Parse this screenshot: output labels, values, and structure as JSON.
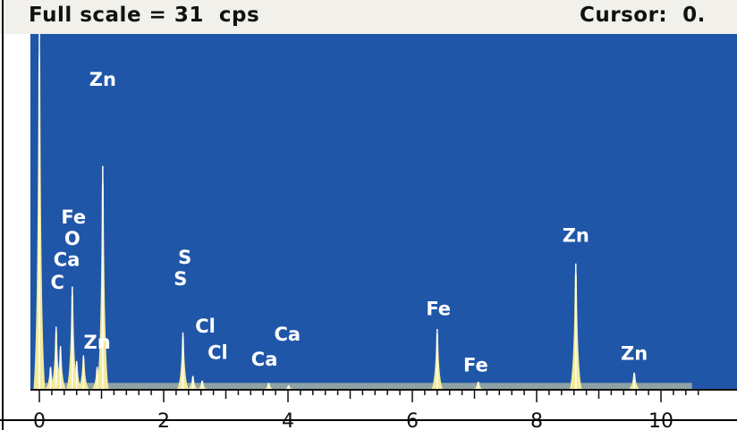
{
  "header": {
    "full_scale": "Full scale = 31  cps",
    "cursor": "Cursor:  0."
  },
  "colors": {
    "plot_bg": "#1f56a8",
    "peak_fill": "#f3ea9a",
    "peak_line": "#ffffff",
    "baseline": "#e9e1a3",
    "axis": "#101010",
    "label": "#ffffff"
  },
  "chart_data": {
    "type": "area",
    "title": "",
    "xlabel": "",
    "ylabel": "",
    "xlim": [
      0,
      10.5
    ],
    "ylim": [
      0,
      31
    ],
    "x_ticks": [
      "0",
      "2",
      "4",
      "6",
      "8",
      "10"
    ],
    "x_tick_values": [
      0,
      2,
      4,
      6,
      8,
      10
    ],
    "peaks": [
      {
        "x": 0.0,
        "y": 31,
        "w": 0.03
      },
      {
        "x": 0.18,
        "y": 2.0,
        "w": 0.03
      },
      {
        "x": 0.27,
        "y": 5.5,
        "w": 0.03
      },
      {
        "x": 0.34,
        "y": 3.8,
        "w": 0.03
      },
      {
        "x": 0.53,
        "y": 9.0,
        "w": 0.035
      },
      {
        "x": 0.6,
        "y": 2.5,
        "w": 0.03
      },
      {
        "x": 0.71,
        "y": 3.0,
        "w": 0.03
      },
      {
        "x": 0.93,
        "y": 2.0,
        "w": 0.03
      },
      {
        "x": 1.02,
        "y": 19.5,
        "w": 0.04
      },
      {
        "x": 2.31,
        "y": 5.0,
        "w": 0.035
      },
      {
        "x": 2.47,
        "y": 1.2,
        "w": 0.03
      },
      {
        "x": 2.62,
        "y": 0.8,
        "w": 0.03
      },
      {
        "x": 3.69,
        "y": 0.6,
        "w": 0.035
      },
      {
        "x": 4.01,
        "y": 0.4,
        "w": 0.035
      },
      {
        "x": 6.4,
        "y": 5.3,
        "w": 0.04
      },
      {
        "x": 7.06,
        "y": 0.7,
        "w": 0.04
      },
      {
        "x": 8.63,
        "y": 11.0,
        "w": 0.045
      },
      {
        "x": 9.57,
        "y": 1.5,
        "w": 0.045
      }
    ],
    "background_level": 0.6,
    "peak_labels": [
      {
        "text": "Zn",
        "x": 1.02,
        "y": 26.5
      },
      {
        "text": "Fe",
        "x": 0.55,
        "y": 14.5
      },
      {
        "text": "O",
        "x": 0.53,
        "y": 12.6
      },
      {
        "text": "Ca",
        "x": 0.44,
        "y": 10.8
      },
      {
        "text": "C",
        "x": 0.29,
        "y": 8.8
      },
      {
        "text": "Zn",
        "x": 0.93,
        "y": 3.6
      },
      {
        "text": "S",
        "x": 2.34,
        "y": 11.0
      },
      {
        "text": "S",
        "x": 2.27,
        "y": 9.1
      },
      {
        "text": "Cl",
        "x": 2.67,
        "y": 5.0
      },
      {
        "text": "Cl",
        "x": 2.87,
        "y": 2.7
      },
      {
        "text": "Ca",
        "x": 3.99,
        "y": 4.3
      },
      {
        "text": "Ca",
        "x": 3.62,
        "y": 2.1
      },
      {
        "text": "Fe",
        "x": 6.42,
        "y": 6.5
      },
      {
        "text": "Fe",
        "x": 7.02,
        "y": 1.6
      },
      {
        "text": "Zn",
        "x": 8.63,
        "y": 12.9
      },
      {
        "text": "Zn",
        "x": 9.57,
        "y": 2.6
      }
    ]
  }
}
